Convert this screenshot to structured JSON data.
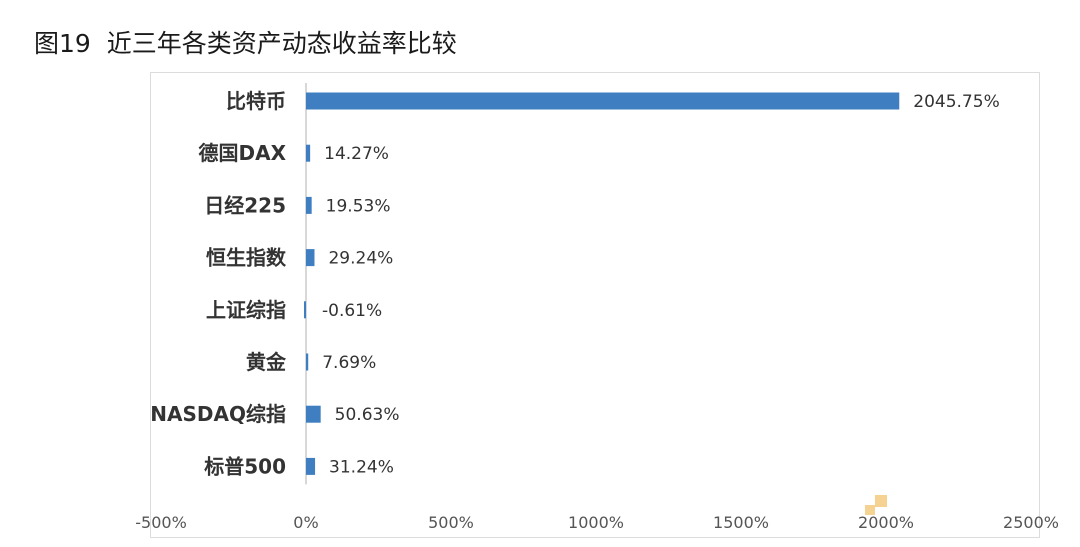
{
  "figure": {
    "title": "图19  近三年各类资产动态收益率比较"
  },
  "chart_data": {
    "type": "bar",
    "orientation": "horizontal",
    "categories": [
      "比特币",
      "德国DAX",
      "日经225",
      "恒生指数",
      "上证综指",
      "黄金",
      "NASDAQ综指",
      "标普500"
    ],
    "values": [
      2045.75,
      14.27,
      19.53,
      29.24,
      -0.61,
      7.69,
      50.63,
      31.24
    ],
    "value_labels": [
      "2045.75%",
      "14.27%",
      "19.53%",
      "29.24%",
      "-0.61%",
      "7.69%",
      "50.63%",
      "31.24%"
    ],
    "xlim": [
      -500,
      2500
    ],
    "xticks": [
      -500,
      0,
      500,
      1000,
      1500,
      2000,
      2500
    ],
    "xtick_labels": [
      "-500%",
      "0%",
      "500%",
      "1000%",
      "1500%",
      "2000%",
      "2500%"
    ],
    "grid": false,
    "legend": "none",
    "bar_color": "#3f7fc1",
    "title": "",
    "xlabel": "",
    "ylabel": ""
  }
}
